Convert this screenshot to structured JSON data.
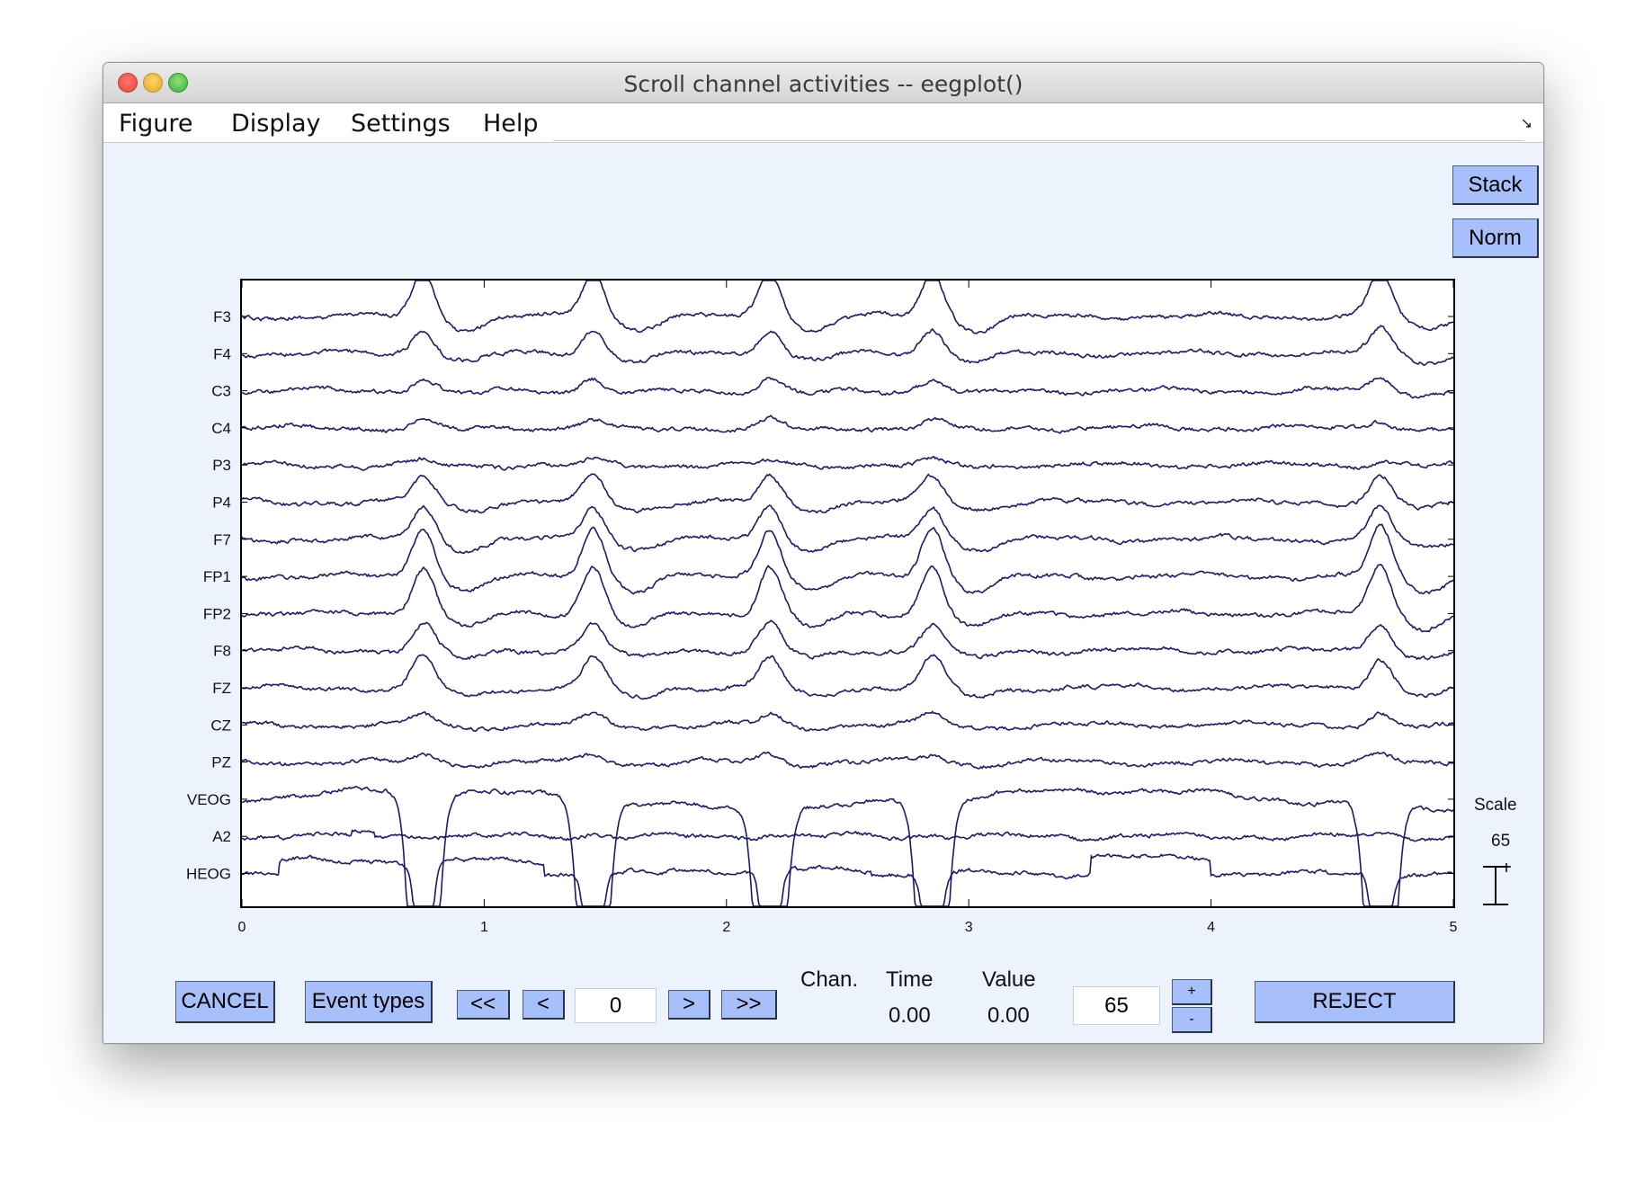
{
  "window": {
    "title": "Scroll channel activities -- eegplot()"
  },
  "menu": {
    "items": [
      "Figure",
      "Display",
      "Settings",
      "Help"
    ]
  },
  "side_buttons": {
    "stack": "Stack",
    "norm": "Norm"
  },
  "scale": {
    "label": "Scale",
    "value": "65"
  },
  "controls": {
    "cancel": "CANCEL",
    "event_types": "Event types",
    "first": "<<",
    "prev": "<",
    "position_value": "0",
    "next": ">",
    "last": ">>",
    "chan_label": "Chan.",
    "time_label": "Time",
    "time_value": "0.00",
    "value_label": "Value",
    "value_value": "0.00",
    "scale_value": "65",
    "plus": "+",
    "minus": "-",
    "reject": "REJECT"
  },
  "colors": {
    "trace": "#1a1a6e",
    "button": "#a7c0fb",
    "panel": "#edf3fd"
  },
  "chart_data": {
    "type": "line",
    "x_ticks": [
      "0",
      "1",
      "2",
      "3",
      "4",
      "5"
    ],
    "xlim": [
      0,
      5
    ],
    "channels": [
      "F3",
      "F4",
      "C3",
      "C4",
      "P3",
      "P4",
      "F7",
      "FP1",
      "FP2",
      "F8",
      "FZ",
      "CZ",
      "PZ",
      "VEOG",
      "A2",
      "HEOG"
    ],
    "blink_times": [
      0.75,
      1.45,
      2.18,
      2.85,
      4.7
    ],
    "blink_amplitudes": {
      "F3": 1.8,
      "F4": 1.0,
      "C3": 0.5,
      "C4": 0.35,
      "P3": 0.15,
      "P4": 1.0,
      "F7": 1.3,
      "FP1": 2.0,
      "FP2": 1.9,
      "F8": 1.1,
      "FZ": 1.2,
      "CZ": 0.4,
      "PZ": 0.3,
      "VEOG": 0,
      "A2": 0.1,
      "HEOG": 0
    },
    "grid": false
  }
}
